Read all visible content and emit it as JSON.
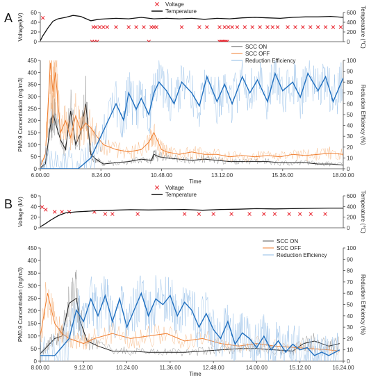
{
  "chart_data": [
    {
      "panel_letter": "A",
      "subplots": [
        {
          "type": "line",
          "xlim": [
            6.0,
            18.0
          ],
          "ylabel": "Voltage(kV)",
          "ylim": [
            0,
            60
          ],
          "yticks": [
            0,
            20,
            40,
            60
          ],
          "y2label": "Temperature (℃)",
          "y2lim": [
            0,
            600
          ],
          "y2ticks": [
            0,
            200,
            400,
            600
          ],
          "legend": "top-left",
          "series": [
            {
              "name": "Voltage",
              "kind": "scatter",
              "marker": "x",
              "color": "#e8202a",
              "x": [
                6.1,
                8.1,
                8.2,
                8.35,
                8.5,
                8.65,
                9.0,
                9.5,
                9.8,
                10.1,
                10.4,
                10.5,
                10.6,
                11.6,
                12.3,
                12.6,
                13.1,
                13.3,
                13.45,
                13.6,
                13.8,
                14.1,
                14.4,
                14.7,
                15.0,
                15.2,
                15.4,
                15.8,
                16.1,
                16.4,
                16.7,
                17.0,
                17.3,
                17.6,
                17.9
              ],
              "y": [
                49,
                30,
                30,
                30,
                30,
                30,
                30,
                30,
                30,
                30,
                30,
                30,
                30,
                30,
                30,
                30,
                30,
                30,
                30,
                30,
                30,
                30,
                30,
                30,
                30,
                30,
                30,
                30,
                30,
                30,
                30,
                30,
                30,
                30,
                30
              ]
            },
            {
              "name": "Voltage",
              "kind": "scatter",
              "marker": "x",
              "color": "#e8202a",
              "x": [
                8.05,
                8.15,
                8.25,
                10.3,
                13.1,
                13.15,
                13.2,
                13.25,
                13.3,
                13.35,
                13.4
              ],
              "y": [
                0,
                0,
                0,
                0,
                0,
                0,
                0,
                0,
                0,
                0,
                0
              ]
            },
            {
              "name": "Temperature",
              "kind": "line",
              "axis": "y2",
              "color": "#111111",
              "x": [
                6.0,
                6.1,
                6.3,
                6.5,
                6.7,
                7.0,
                7.3,
                7.6,
                8.0,
                8.3,
                8.6,
                9.0,
                9.5,
                10.0,
                10.5,
                11.0,
                11.5,
                12.0,
                12.5,
                13.0,
                13.5,
                14.0,
                14.5,
                15.0,
                15.5,
                16.0,
                16.5,
                17.0,
                17.5,
                18.0
              ],
              "y": [
                20,
                120,
                280,
                420,
                470,
                500,
                540,
                520,
                430,
                460,
                470,
                480,
                470,
                500,
                470,
                480,
                470,
                480,
                460,
                480,
                470,
                490,
                500,
                490,
                480,
                500,
                510,
                510,
                520,
                500
              ]
            }
          ]
        },
        {
          "type": "line",
          "xlabel": "Time",
          "xlim": [
            6.0,
            18.0
          ],
          "xticks": [
            "6.00.00",
            "8.24.00",
            "10.48.00",
            "13.12.00",
            "15.36.00",
            "18.00.00"
          ],
          "ylabel": "PM0.9 Concentration (mg/m3)",
          "ylim": [
            0,
            450
          ],
          "yticks": [
            0,
            50,
            100,
            150,
            200,
            250,
            300,
            350,
            400,
            450
          ],
          "y2label": "Reduction Efficiency (%)",
          "y2lim": [
            0,
            100
          ],
          "y2ticks": [
            0,
            10,
            20,
            30,
            40,
            50,
            60,
            70,
            80,
            90,
            100
          ],
          "legend": "top-center",
          "series": [
            {
              "name": "SCC ON",
              "color": "#222222",
              "width": 1.0,
              "x": [
                6.0,
                6.2,
                6.4,
                6.5,
                6.6,
                6.8,
                7.0,
                7.2,
                7.4,
                7.6,
                7.8,
                8.0,
                8.2,
                8.5,
                9.0,
                9.5,
                10.0,
                10.4,
                10.5,
                10.7,
                11.0,
                11.5,
                12.0,
                12.5,
                13.0,
                13.5,
                14.0,
                14.5,
                15.0,
                15.5,
                16.0,
                16.5,
                17.0,
                17.5,
                18.0
              ],
              "y": [
                5,
                20,
                180,
                230,
                190,
                120,
                80,
                240,
                100,
                150,
                270,
                60,
                40,
                20,
                25,
                30,
                40,
                35,
                60,
                50,
                45,
                40,
                35,
                40,
                35,
                30,
                30,
                30,
                30,
                25,
                25,
                25,
                20,
                20,
                15
              ]
            },
            {
              "name": "SCC OFF",
              "color": "#f07f30",
              "width": 1.0,
              "x": [
                6.0,
                6.2,
                6.4,
                6.5,
                6.6,
                6.8,
                7.0,
                7.2,
                7.4,
                7.6,
                7.8,
                8.0,
                8.2,
                8.5,
                9.0,
                9.5,
                10.0,
                10.3,
                10.5,
                10.8,
                11.0,
                11.5,
                12.0,
                12.5,
                13.0,
                13.5,
                14.0,
                14.5,
                15.0,
                15.5,
                16.0,
                16.5,
                17.0,
                17.5,
                18.0
              ],
              "y": [
                10,
                60,
                440,
                320,
                400,
                150,
                200,
                130,
                220,
                160,
                190,
                170,
                140,
                100,
                80,
                70,
                80,
                110,
                150,
                80,
                70,
                60,
                70,
                60,
                60,
                50,
                55,
                50,
                55,
                50,
                60,
                55,
                60,
                65,
                60
              ]
            },
            {
              "name": "Reduction Efficiency",
              "axis": "y2",
              "color": "#1f6fbf",
              "width": 1.4,
              "x": [
                6.0,
                6.5,
                7.0,
                7.5,
                8.0,
                8.5,
                9.0,
                9.3,
                9.5,
                9.8,
                10.0,
                10.3,
                10.5,
                10.7,
                11.0,
                11.3,
                11.6,
                12.0,
                12.3,
                12.6,
                13.0,
                13.3,
                13.6,
                14.0,
                14.3,
                14.6,
                15.0,
                15.3,
                15.6,
                16.0,
                16.3,
                16.6,
                17.0,
                17.3,
                17.6,
                18.0
              ],
              "y": [
                0,
                0,
                0,
                0,
                10,
                35,
                60,
                45,
                70,
                55,
                65,
                50,
                70,
                80,
                72,
                60,
                80,
                70,
                58,
                85,
                62,
                78,
                60,
                85,
                70,
                82,
                62,
                88,
                72,
                80,
                66,
                88,
                72,
                85,
                62,
                84
              ]
            }
          ]
        }
      ]
    },
    {
      "panel_letter": "B",
      "subplots": [
        {
          "type": "line",
          "xlim": [
            8.0,
            16.4
          ],
          "ylabel": "Voltage (kV)",
          "ylim": [
            0,
            60
          ],
          "yticks": [
            0,
            20,
            40,
            60
          ],
          "y2label": "Temperature (℃)",
          "y2lim": [
            0,
            600
          ],
          "y2ticks": [
            0,
            200,
            400,
            600
          ],
          "legend": "top-left",
          "series": [
            {
              "name": "Voltage",
              "kind": "scatter",
              "marker": "x",
              "color": "#e8202a",
              "x": [
                8.05,
                8.15,
                8.4,
                8.6,
                8.8,
                9.5,
                9.8,
                10.0,
                10.7,
                12.0,
                12.4,
                12.8,
                13.3,
                13.8,
                14.2,
                14.5,
                14.9,
                15.2,
                15.5,
                15.9
              ],
              "y": [
                39,
                34,
                30,
                30,
                30,
                30,
                26,
                26,
                26,
                26,
                26,
                26,
                26,
                26,
                26,
                26,
                26,
                26,
                26,
                26
              ]
            },
            {
              "name": "Temperature",
              "kind": "line",
              "axis": "y2",
              "color": "#111111",
              "x": [
                8.0,
                8.1,
                8.3,
                8.5,
                8.7,
                9.0,
                9.3,
                9.5,
                10.0,
                10.5,
                11.0,
                11.5,
                12.0,
                12.5,
                13.0,
                13.5,
                14.0,
                14.5,
                15.0,
                15.5,
                16.0,
                16.4
              ],
              "y": [
                20,
                60,
                150,
                230,
                280,
                300,
                310,
                320,
                330,
                340,
                335,
                340,
                345,
                330,
                345,
                350,
                360,
                355,
                360,
                365,
                370,
                370
              ]
            }
          ]
        },
        {
          "type": "line",
          "xlabel": "Time",
          "xlim": [
            8.0,
            16.4
          ],
          "xticks": [
            "8.00.00",
            "9.12.00",
            "10.24.00",
            "11.36.00",
            "12.48.00",
            "14.00.00",
            "15.12.00",
            "16.24.00"
          ],
          "ylabel": "PM0.9 Concentration (mg/m3)",
          "ylim": [
            0,
            450
          ],
          "yticks": [
            0,
            50,
            100,
            150,
            200,
            250,
            300,
            350,
            400,
            450
          ],
          "y2label": "Reduction Efficiency (%)",
          "y2lim": [
            0,
            100
          ],
          "y2ticks": [
            0,
            10,
            20,
            30,
            40,
            50,
            60,
            70,
            80,
            90,
            100
          ],
          "legend": "top-right",
          "series": [
            {
              "name": "SCC ON",
              "color": "#222222",
              "width": 1.0,
              "x": [
                8.0,
                8.2,
                8.4,
                8.6,
                8.8,
                9.0,
                9.1,
                9.3,
                9.6,
                10.0,
                10.5,
                11.0,
                11.5,
                12.0,
                12.5,
                13.0,
                13.5,
                14.0,
                14.5,
                15.0,
                15.3,
                15.6,
                16.0,
                16.3
              ],
              "y": [
                30,
                60,
                90,
                100,
                230,
                250,
                160,
                80,
                60,
                40,
                40,
                35,
                35,
                35,
                40,
                45,
                50,
                50,
                45,
                40,
                70,
                80,
                60,
                70
              ]
            },
            {
              "name": "SCC OFF",
              "color": "#f07f30",
              "width": 1.0,
              "x": [
                8.0,
                8.2,
                8.4,
                8.6,
                8.8,
                9.0,
                9.2,
                9.5,
                10.0,
                10.5,
                11.0,
                11.5,
                12.0,
                12.5,
                13.0,
                13.5,
                14.0,
                14.5,
                15.0,
                15.5,
                16.0,
                16.3
              ],
              "y": [
                100,
                270,
                150,
                110,
                90,
                80,
                70,
                90,
                110,
                90,
                100,
                110,
                80,
                90,
                70,
                60,
                70,
                60,
                55,
                50,
                45,
                40
              ]
            },
            {
              "name": "Reduction Efficiency",
              "axis": "y2",
              "color": "#1f6fbf",
              "width": 1.4,
              "x": [
                8.0,
                8.4,
                8.8,
                9.0,
                9.2,
                9.4,
                9.6,
                9.8,
                10.0,
                10.2,
                10.4,
                10.6,
                10.8,
                11.0,
                11.2,
                11.4,
                11.6,
                11.8,
                12.0,
                12.2,
                12.4,
                12.6,
                12.8,
                13.0,
                13.2,
                13.4,
                13.6,
                13.8,
                14.0,
                14.2,
                14.4,
                14.6,
                14.8,
                15.0,
                15.2,
                15.4,
                15.6,
                15.8,
                16.0,
                16.3
              ],
              "y": [
                5,
                5,
                20,
                45,
                35,
                55,
                40,
                58,
                35,
                55,
                30,
                45,
                60,
                40,
                55,
                50,
                58,
                40,
                52,
                45,
                30,
                42,
                28,
                20,
                35,
                15,
                25,
                20,
                12,
                22,
                10,
                18,
                8,
                15,
                10,
                12,
                5,
                8,
                5,
                10
              ]
            }
          ]
        }
      ]
    }
  ]
}
